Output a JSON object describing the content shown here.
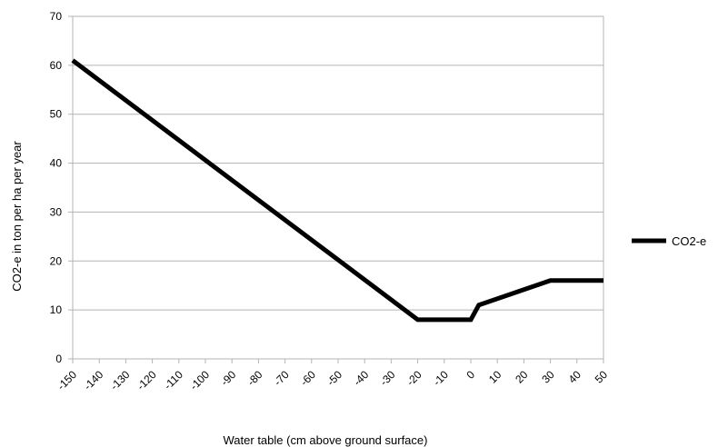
{
  "chart_data": {
    "type": "line",
    "title": "",
    "xlabel": "Water table (cm above ground surface)",
    "ylabel": "CO2-e in ton per ha per year",
    "categories": [
      "-150",
      "-140",
      "-130",
      "-120",
      "-110",
      "-100",
      "-90",
      "-80",
      "-70",
      "-60",
      "-50",
      "-40",
      "-30",
      "-20",
      "-10",
      "0",
      "10",
      "20",
      "30",
      "40",
      "50"
    ],
    "ylim": [
      0,
      70
    ],
    "yticks": [
      "0",
      "10",
      "20",
      "30",
      "40",
      "50",
      "60",
      "70"
    ],
    "grid": "horizontal",
    "legend_position": "right",
    "series": [
      {
        "name": "CO2-e",
        "color": "#000000",
        "points": [
          [
            -150,
            61
          ],
          [
            -20,
            8
          ],
          [
            0,
            8
          ],
          [
            3,
            11
          ],
          [
            30,
            16
          ],
          [
            50,
            16
          ]
        ]
      }
    ]
  }
}
